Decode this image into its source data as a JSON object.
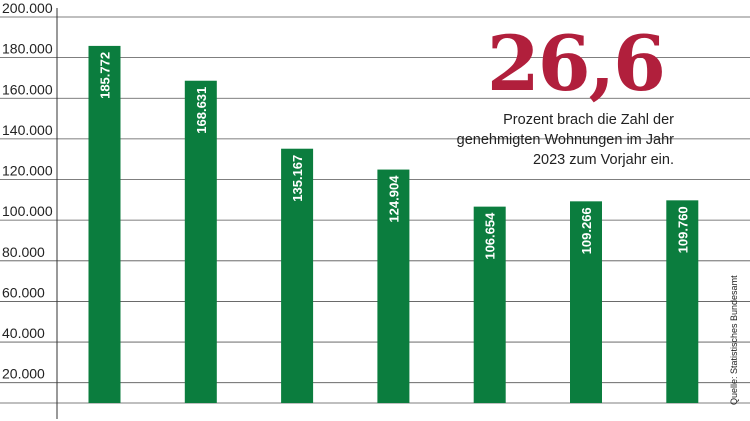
{
  "chart_data": {
    "type": "bar",
    "values": [
      185772,
      168631,
      135167,
      124904,
      106654,
      109266,
      109760
    ],
    "value_labels": [
      "185.772",
      "168.631",
      "135.167",
      "124.904",
      "106.654",
      "109.266",
      "109.760"
    ],
    "yticks": [
      20000,
      40000,
      60000,
      80000,
      100000,
      120000,
      140000,
      160000,
      180000,
      200000
    ],
    "ytick_labels": [
      "20.000",
      "40.000",
      "60.000",
      "80.000",
      "100.000",
      "120.000",
      "140.000",
      "160.000",
      "180.000",
      "200.000"
    ],
    "ylim": [
      10000,
      200000
    ],
    "grid": true,
    "title": "",
    "xlabel": "",
    "ylabel": ""
  },
  "callout": {
    "big_number": "26,6",
    "text": "Prozent brach die Zahl der genehmigten Wohnungen im Jahr 2023 zum Vorjahr ein."
  },
  "source": "Quelle: Statistisches Bundesamt",
  "colors": {
    "bar": "#0b7d3e",
    "accent": "#b11f3c",
    "grid": "#555555",
    "text": "#222222"
  }
}
